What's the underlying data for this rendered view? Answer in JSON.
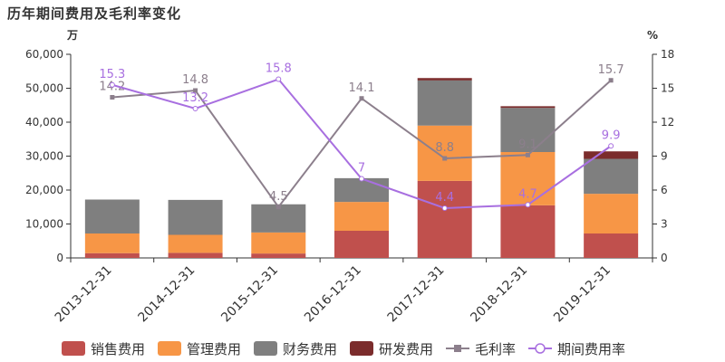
{
  "title": "历年期间费用及毛利率变化",
  "colors": {
    "销售费用": "#c0504d",
    "管理费用": "#f79646",
    "财务费用": "#7f7f7f",
    "研发费用": "#7b2c2c",
    "毛利率": "#8c7f8c",
    "期间费用率": "#a86fe0"
  },
  "chart_data": {
    "type": "bar",
    "title": "历年期间费用及毛利率变化",
    "categories": [
      "2013-12-31",
      "2014-12-31",
      "2015-12-31",
      "2016-12-31",
      "2017-12-31",
      "2018-12-31",
      "2019-12-31"
    ],
    "y_left": {
      "unit": "万",
      "ylim": [
        0,
        60000
      ],
      "ticks": [
        "0",
        "10,000",
        "20,000",
        "30,000",
        "40,000",
        "50,000",
        "60,000"
      ]
    },
    "y_right": {
      "unit": "%",
      "ylim": [
        0,
        18
      ],
      "ticks": [
        "0",
        "3",
        "6",
        "9",
        "12",
        "15",
        "18"
      ]
    },
    "stacked": true,
    "series": [
      {
        "name": "销售费用",
        "type": "bar",
        "axis": "left",
        "values": [
          1400,
          1500,
          1300,
          8000,
          22700,
          15500,
          7200
        ]
      },
      {
        "name": "管理费用",
        "type": "bar",
        "axis": "left",
        "values": [
          5800,
          5300,
          6200,
          8500,
          16300,
          15700,
          11700
        ]
      },
      {
        "name": "财务费用",
        "type": "bar",
        "axis": "left",
        "values": [
          10000,
          10300,
          8300,
          7000,
          13300,
          13000,
          10300
        ]
      },
      {
        "name": "研发费用",
        "type": "bar",
        "axis": "left",
        "values": [
          0,
          0,
          0,
          0,
          700,
          500,
          2200
        ]
      },
      {
        "name": "毛利率",
        "type": "line",
        "axis": "right",
        "values": [
          14.2,
          14.8,
          4.5,
          14.1,
          8.8,
          9.1,
          15.7
        ],
        "labels": [
          "14.2",
          "14.8",
          "4.5",
          "14.1",
          "8.8",
          "9.1",
          "15.7"
        ]
      },
      {
        "name": "期间费用率",
        "type": "line",
        "axis": "right",
        "values": [
          15.3,
          13.2,
          15.8,
          7.0,
          4.4,
          4.7,
          9.9
        ],
        "labels": [
          "15.3",
          "13.2",
          "15.8",
          "7",
          "4.4",
          "4.7",
          "9.9"
        ]
      }
    ],
    "grid": false,
    "legend": "bottom"
  }
}
